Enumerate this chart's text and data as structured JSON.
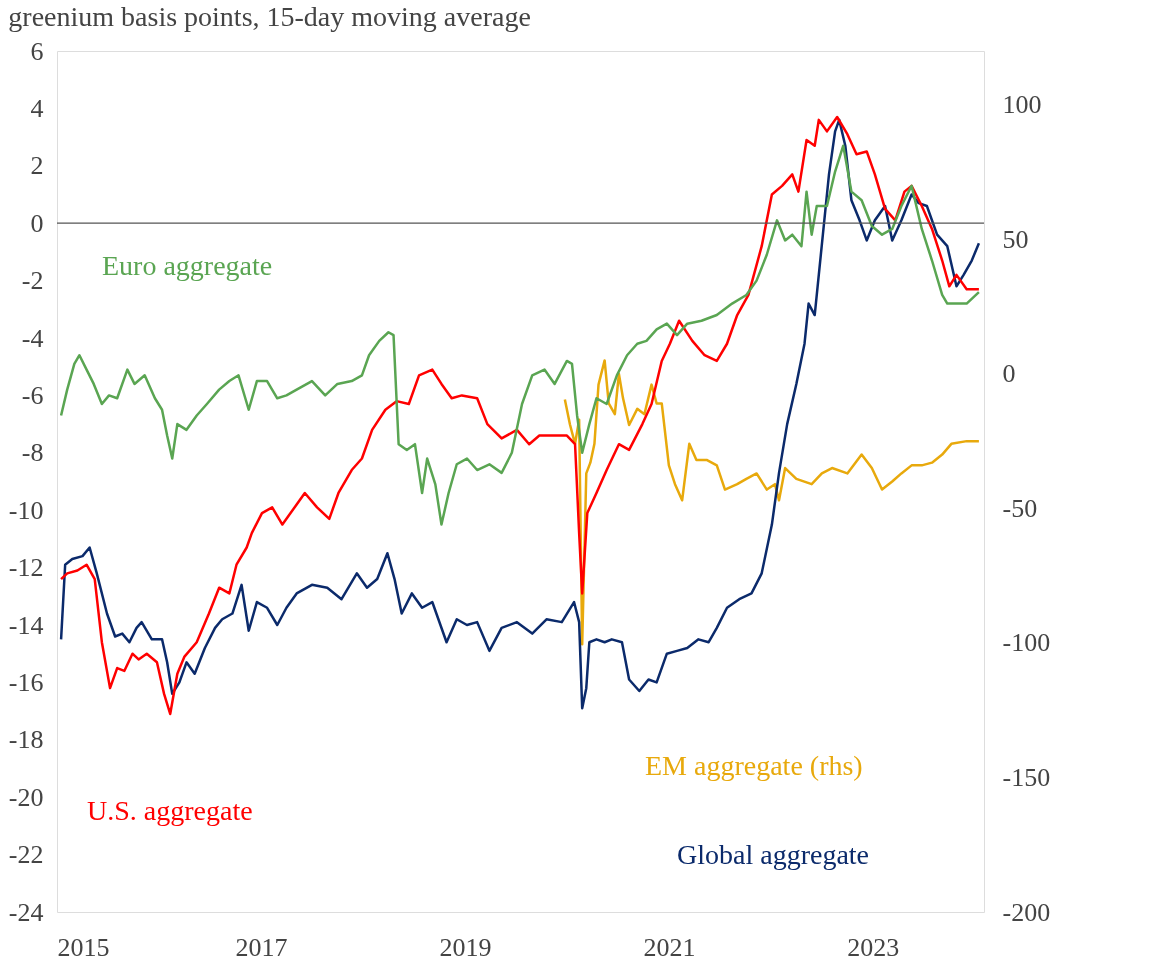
{
  "chart_data": {
    "type": "line",
    "title": "greenium basis points, 15-day moving average",
    "xlim": [
      2015,
      2024.09
    ],
    "xticks": [
      2015,
      2017,
      2019,
      2021,
      2023
    ],
    "ylim": [
      -24,
      6
    ],
    "yticks": [
      -24,
      -22,
      -20,
      -18,
      -16,
      -14,
      -12,
      -10,
      -8,
      -6,
      -4,
      -2,
      0,
      2,
      4,
      6
    ],
    "y2lim": [
      -200,
      120
    ],
    "y2ticks": [
      -200,
      -150,
      -100,
      -50,
      0,
      50,
      100
    ],
    "grid": false,
    "ref_lines": [
      {
        "axis": "y",
        "value": 0,
        "color": "#555555"
      }
    ],
    "series": [
      {
        "name": "Global aggregate",
        "color": "#0b2a6b",
        "x": [
          2015.04,
          2015.08,
          2015.15,
          2015.25,
          2015.32,
          2015.39,
          2015.49,
          2015.57,
          2015.64,
          2015.71,
          2015.78,
          2015.83,
          2015.93,
          2016.03,
          2016.08,
          2016.13,
          2016.2,
          2016.27,
          2016.35,
          2016.45,
          2016.55,
          2016.62,
          2016.72,
          2016.81,
          2016.88,
          2016.96,
          2017.06,
          2017.16,
          2017.25,
          2017.35,
          2017.5,
          2017.65,
          2017.79,
          2017.94,
          2018.04,
          2018.14,
          2018.24,
          2018.31,
          2018.38,
          2018.48,
          2018.58,
          2018.68,
          2018.82,
          2018.92,
          2019.02,
          2019.12,
          2019.24,
          2019.36,
          2019.51,
          2019.66,
          2019.8,
          2019.95,
          2020.07,
          2020.12,
          2020.15,
          2020.19,
          2020.22,
          2020.29,
          2020.37,
          2020.44,
          2020.54,
          2020.61,
          2020.71,
          2020.8,
          2020.88,
          2020.98,
          2021.08,
          2021.18,
          2021.29,
          2021.39,
          2021.47,
          2021.57,
          2021.69,
          2021.81,
          2021.91,
          2022.01,
          2022.08,
          2022.16,
          2022.25,
          2022.33,
          2022.37,
          2022.43,
          2022.51,
          2022.57,
          2022.63,
          2022.67,
          2022.73,
          2022.79,
          2022.87,
          2022.94,
          2023.02,
          2023.12,
          2023.19,
          2023.28,
          2023.38,
          2023.45,
          2023.53,
          2023.63,
          2023.73,
          2023.82,
          2023.89,
          2023.97,
          2024.04
        ],
        "values": [
          -14.5,
          -11.9,
          -11.7,
          -11.6,
          -11.3,
          -12.2,
          -13.6,
          -14.4,
          -14.3,
          -14.6,
          -14.1,
          -13.9,
          -14.5,
          -14.5,
          -15.3,
          -16.4,
          -16.0,
          -15.3,
          -15.7,
          -14.8,
          -14.1,
          -13.8,
          -13.6,
          -12.6,
          -14.2,
          -13.2,
          -13.4,
          -14.0,
          -13.4,
          -12.9,
          -12.6,
          -12.7,
          -13.1,
          -12.2,
          -12.7,
          -12.4,
          -11.5,
          -12.4,
          -13.6,
          -12.9,
          -13.4,
          -13.2,
          -14.6,
          -13.8,
          -14.0,
          -13.9,
          -14.9,
          -14.1,
          -13.9,
          -14.3,
          -13.8,
          -13.9,
          -13.2,
          -13.9,
          -16.9,
          -16.2,
          -14.6,
          -14.5,
          -14.6,
          -14.5,
          -14.6,
          -15.9,
          -16.3,
          -15.9,
          -16.0,
          -15.0,
          -14.9,
          -14.8,
          -14.5,
          -14.6,
          -14.1,
          -13.4,
          -13.1,
          -12.9,
          -12.2,
          -10.5,
          -8.7,
          -7.0,
          -5.6,
          -4.2,
          -2.8,
          -3.2,
          -0.4,
          1.7,
          3.2,
          3.6,
          2.7,
          0.8,
          0.1,
          -0.6,
          0.1,
          0.6,
          -0.6,
          0.1,
          1.0,
          0.7,
          0.6,
          -0.4,
          -0.8,
          -2.2,
          -1.8,
          -1.3,
          -0.7
        ]
      },
      {
        "name": "U.S. aggregate",
        "color": "#ff0000",
        "x": [
          2015.04,
          2015.1,
          2015.2,
          2015.29,
          2015.37,
          2015.44,
          2015.52,
          2015.59,
          2015.66,
          2015.74,
          2015.8,
          2015.88,
          2015.98,
          2016.05,
          2016.11,
          2016.18,
          2016.25,
          2016.37,
          2016.49,
          2016.59,
          2016.69,
          2016.76,
          2016.86,
          2016.91,
          2017.01,
          2017.11,
          2017.21,
          2017.35,
          2017.43,
          2017.55,
          2017.67,
          2017.76,
          2017.89,
          2017.99,
          2018.09,
          2018.22,
          2018.33,
          2018.45,
          2018.55,
          2018.68,
          2018.77,
          2018.87,
          2018.97,
          2019.12,
          2019.22,
          2019.36,
          2019.51,
          2019.63,
          2019.73,
          2019.85,
          2020.0,
          2020.08,
          2020.12,
          2020.15,
          2020.2,
          2020.29,
          2020.39,
          2020.51,
          2020.61,
          2020.74,
          2020.83,
          2020.93,
          2021.01,
          2021.1,
          2021.23,
          2021.35,
          2021.47,
          2021.57,
          2021.67,
          2021.78,
          2021.91,
          2022.01,
          2022.11,
          2022.21,
          2022.27,
          2022.35,
          2022.43,
          2022.47,
          2022.55,
          2022.65,
          2022.75,
          2022.84,
          2022.94,
          2023.02,
          2023.12,
          2023.22,
          2023.31,
          2023.38,
          2023.48,
          2023.58,
          2023.68,
          2023.75,
          2023.82,
          2023.92,
          2024.04
        ],
        "values": [
          -12.4,
          -12.2,
          -12.1,
          -11.9,
          -12.4,
          -14.6,
          -16.2,
          -15.5,
          -15.6,
          -15.0,
          -15.2,
          -15.0,
          -15.3,
          -16.4,
          -17.1,
          -15.7,
          -15.1,
          -14.6,
          -13.6,
          -12.7,
          -12.9,
          -11.9,
          -11.3,
          -10.8,
          -10.1,
          -9.9,
          -10.5,
          -9.8,
          -9.4,
          -9.9,
          -10.3,
          -9.4,
          -8.6,
          -8.2,
          -7.2,
          -6.5,
          -6.2,
          -6.3,
          -5.3,
          -5.1,
          -5.6,
          -6.1,
          -6.0,
          -6.1,
          -7.0,
          -7.5,
          -7.2,
          -7.7,
          -7.4,
          -7.4,
          -7.4,
          -7.7,
          -10.8,
          -12.9,
          -10.1,
          -9.4,
          -8.6,
          -7.7,
          -7.9,
          -7.0,
          -6.3,
          -4.8,
          -4.2,
          -3.4,
          -4.1,
          -4.6,
          -4.8,
          -4.2,
          -3.2,
          -2.5,
          -0.8,
          1.0,
          1.3,
          1.7,
          1.1,
          2.9,
          2.7,
          3.6,
          3.2,
          3.7,
          3.1,
          2.4,
          2.5,
          1.7,
          0.5,
          0.1,
          1.1,
          1.3,
          0.6,
          -0.2,
          -1.3,
          -2.2,
          -1.8,
          -2.3,
          -2.3
        ]
      },
      {
        "name": "Euro aggregate",
        "color": "#5aa552",
        "x": [
          2015.04,
          2015.1,
          2015.17,
          2015.22,
          2015.29,
          2015.36,
          2015.44,
          2015.51,
          2015.59,
          2015.69,
          2015.76,
          2015.86,
          2015.96,
          2016.03,
          2016.08,
          2016.13,
          2016.18,
          2016.27,
          2016.37,
          2016.47,
          2016.59,
          2016.69,
          2016.78,
          2016.88,
          2016.96,
          2017.06,
          2017.16,
          2017.25,
          2017.35,
          2017.5,
          2017.63,
          2017.75,
          2017.89,
          2017.99,
          2018.06,
          2018.16,
          2018.25,
          2018.3,
          2018.35,
          2018.43,
          2018.51,
          2018.58,
          2018.63,
          2018.71,
          2018.77,
          2018.84,
          2018.92,
          2019.02,
          2019.12,
          2019.24,
          2019.36,
          2019.46,
          2019.56,
          2019.66,
          2019.78,
          2019.88,
          2020.0,
          2020.05,
          2020.1,
          2020.15,
          2020.22,
          2020.29,
          2020.39,
          2020.49,
          2020.59,
          2020.69,
          2020.78,
          2020.88,
          2020.98,
          2021.08,
          2021.18,
          2021.32,
          2021.47,
          2021.62,
          2021.76,
          2021.86,
          2021.96,
          2022.06,
          2022.14,
          2022.21,
          2022.3,
          2022.35,
          2022.4,
          2022.45,
          2022.55,
          2022.63,
          2022.71,
          2022.79,
          2022.89,
          2022.99,
          2023.09,
          2023.19,
          2023.28,
          2023.38,
          2023.48,
          2023.58,
          2023.68,
          2023.73,
          2023.82,
          2023.92,
          2024.04
        ],
        "values": [
          -6.7,
          -5.8,
          -4.9,
          -4.6,
          -5.1,
          -5.6,
          -6.3,
          -6.0,
          -6.1,
          -5.1,
          -5.6,
          -5.3,
          -6.1,
          -6.5,
          -7.4,
          -8.2,
          -7.0,
          -7.2,
          -6.7,
          -6.3,
          -5.8,
          -5.5,
          -5.3,
          -6.5,
          -5.5,
          -5.5,
          -6.1,
          -6.0,
          -5.8,
          -5.5,
          -6.0,
          -5.6,
          -5.5,
          -5.3,
          -4.6,
          -4.1,
          -3.8,
          -3.9,
          -7.7,
          -7.9,
          -7.7,
          -9.4,
          -8.2,
          -9.1,
          -10.5,
          -9.4,
          -8.4,
          -8.2,
          -8.6,
          -8.4,
          -8.7,
          -8.0,
          -6.3,
          -5.3,
          -5.1,
          -5.6,
          -4.8,
          -4.9,
          -6.7,
          -8.0,
          -7.0,
          -6.1,
          -6.3,
          -5.3,
          -4.6,
          -4.2,
          -4.1,
          -3.7,
          -3.5,
          -3.9,
          -3.5,
          -3.4,
          -3.2,
          -2.8,
          -2.5,
          -2.0,
          -1.1,
          0.1,
          -0.6,
          -0.4,
          -0.8,
          1.1,
          -0.4,
          0.6,
          0.6,
          1.8,
          2.7,
          1.1,
          0.8,
          -0.1,
          -0.4,
          -0.2,
          0.6,
          1.3,
          -0.2,
          -1.3,
          -2.5,
          -2.8,
          -2.8,
          -2.8,
          -2.4
        ]
      },
      {
        "name": "EM aggregate (rhs)",
        "color": "#e8a90c",
        "axis": "y2",
        "x": [
          2019.98,
          2020.03,
          2020.08,
          2020.12,
          2020.15,
          2020.19,
          2020.23,
          2020.27,
          2020.31,
          2020.37,
          2020.41,
          2020.47,
          2020.51,
          2020.55,
          2020.61,
          2020.69,
          2020.76,
          2020.83,
          2020.88,
          2020.93,
          2021.0,
          2021.06,
          2021.13,
          2021.2,
          2021.27,
          2021.37,
          2021.47,
          2021.55,
          2021.67,
          2021.76,
          2021.86,
          2021.96,
          2022.04,
          2022.08,
          2022.14,
          2022.25,
          2022.4,
          2022.5,
          2022.6,
          2022.75,
          2022.89,
          2022.99,
          2023.09,
          2023.19,
          2023.28,
          2023.38,
          2023.48,
          2023.58,
          2023.68,
          2023.77,
          2023.92,
          2024.04
        ],
        "values": [
          -9.5,
          -18.8,
          -26,
          -17,
          -100.5,
          -37,
          -33,
          -26,
          -4,
          5,
          -11,
          -15,
          0,
          -9,
          -19,
          -13,
          -15,
          -4,
          -11,
          -11,
          -34,
          -41,
          -47,
          -26,
          -32,
          -32,
          -34,
          -43,
          -41,
          -39,
          -37,
          -43,
          -41,
          -47,
          -35,
          -39,
          -41,
          -37,
          -35,
          -37,
          -30,
          -35,
          -43,
          -40,
          -37,
          -34,
          -34,
          -33,
          -30,
          -26,
          -25,
          -25
        ]
      }
    ]
  }
}
